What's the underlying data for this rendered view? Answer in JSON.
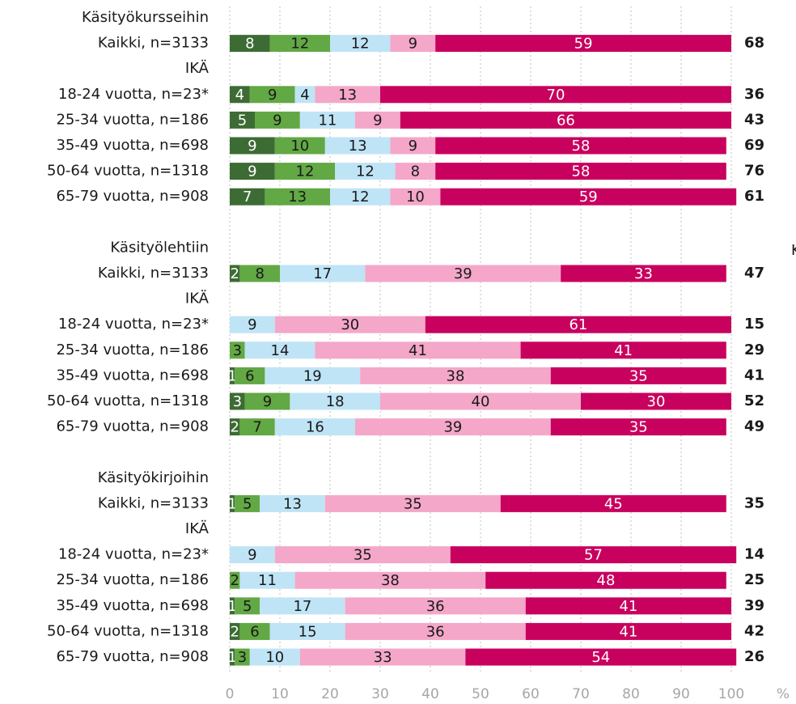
{
  "chart_data": {
    "type": "stacked_bar_horizontal",
    "categories": [
      "Käsityökursseihin",
      "Kaikki, n=3133",
      "IKÄ",
      "18-24 vuotta, n=23*",
      "25-34 vuotta, n=186",
      "35-49 vuotta, n=698",
      "50-64 vuotta, n=1318",
      "65-79 vuotta, n=908",
      null,
      "Käsityölehtiin",
      "Kaikki, n=3133",
      "IKÄ",
      "18-24 vuotta, n=23*",
      "25-34 vuotta, n=186",
      "35-49 vuotta, n=698",
      "50-64 vuotta, n=1318",
      "65-79 vuotta, n=908",
      null,
      "Käsityökirjoihin",
      "Kaikki, n=3133",
      "IKÄ",
      "18-24 vuotta, n=23*",
      "25-34 vuotta, n=186",
      "35-49 vuotta, n=698",
      "50-64 vuotta, n=1318",
      "65-79 vuotta, n=908"
    ],
    "series": [
      {
        "color": "#3d6b34",
        "label_color": "#ffffff",
        "values": [
          null,
          8,
          null,
          4,
          5,
          9,
          9,
          7,
          null,
          null,
          2,
          null,
          null,
          null,
          1,
          3,
          2,
          null,
          null,
          1,
          null,
          null,
          null,
          1,
          2,
          1
        ]
      },
      {
        "color": "#62a844",
        "label_color": "#1a1a1a",
        "values": [
          null,
          12,
          null,
          9,
          9,
          10,
          12,
          13,
          null,
          null,
          8,
          null,
          null,
          3,
          6,
          9,
          7,
          null,
          null,
          5,
          null,
          null,
          2,
          5,
          6,
          3
        ]
      },
      {
        "color": "#bfe4f6",
        "label_color": "#1a1a1a",
        "values": [
          null,
          12,
          null,
          4,
          11,
          13,
          12,
          12,
          null,
          null,
          17,
          null,
          9,
          14,
          19,
          18,
          16,
          null,
          null,
          13,
          null,
          9,
          11,
          17,
          15,
          10
        ]
      },
      {
        "color": "#f4a7c9",
        "label_color": "#1a1a1a",
        "values": [
          null,
          9,
          null,
          13,
          9,
          9,
          8,
          10,
          null,
          null,
          39,
          null,
          30,
          41,
          38,
          40,
          39,
          null,
          null,
          35,
          null,
          35,
          38,
          36,
          36,
          33
        ]
      },
      {
        "color": "#c8005e",
        "label_color": "#ffffff",
        "values": [
          null,
          59,
          null,
          70,
          66,
          58,
          58,
          59,
          null,
          null,
          33,
          null,
          61,
          41,
          35,
          30,
          35,
          null,
          null,
          45,
          null,
          57,
          48,
          41,
          41,
          54
        ]
      }
    ],
    "right_values": [
      null,
      68,
      null,
      36,
      43,
      69,
      76,
      61,
      null,
      null,
      47,
      null,
      15,
      29,
      41,
      52,
      49,
      null,
      null,
      35,
      null,
      14,
      25,
      39,
      42,
      26
    ],
    "xlim": [
      0,
      100
    ],
    "xticks": [
      0,
      10,
      20,
      30,
      40,
      50,
      60,
      70,
      80,
      90,
      100
    ],
    "x_unit": "%",
    "annotation": "K",
    "grid": true
  }
}
